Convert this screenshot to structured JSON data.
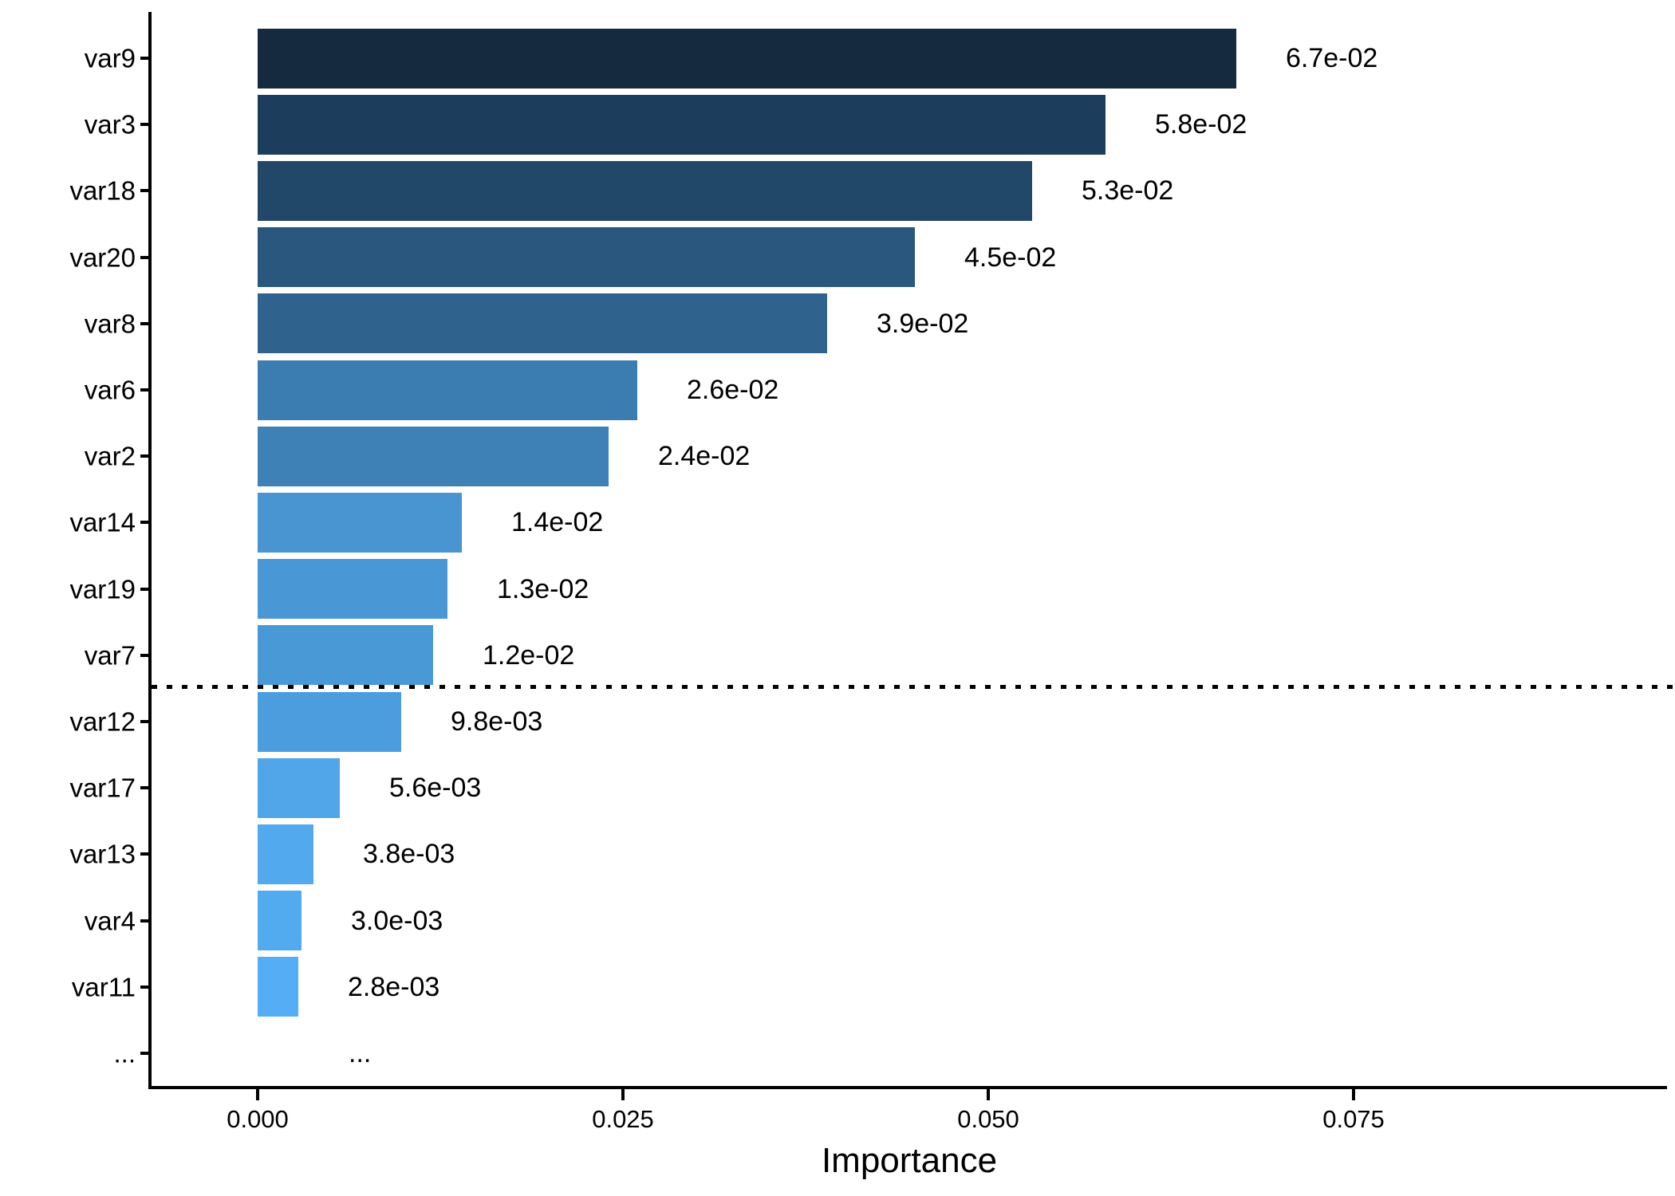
{
  "chart_data": {
    "type": "bar",
    "orientation": "horizontal",
    "title": "",
    "xlabel": "Importance",
    "ylabel": "",
    "categories": [
      "var9",
      "var3",
      "var18",
      "var20",
      "var8",
      "var6",
      "var2",
      "var14",
      "var19",
      "var7",
      "var12",
      "var17",
      "var13",
      "var4",
      "var11",
      "..."
    ],
    "values": [
      0.067,
      0.058,
      0.053,
      0.045,
      0.039,
      0.026,
      0.024,
      0.014,
      0.013,
      0.012,
      0.0098,
      0.0056,
      0.0038,
      0.003,
      0.0028,
      null
    ],
    "value_labels": [
      "6.7e-02",
      "5.8e-02",
      "5.3e-02",
      "4.5e-02",
      "3.9e-02",
      "2.6e-02",
      "2.4e-02",
      "1.4e-02",
      "1.3e-02",
      "1.2e-02",
      "9.8e-03",
      "5.6e-03",
      "3.8e-03",
      "3.0e-03",
      "2.8e-03",
      "..."
    ],
    "bar_colors": [
      "#15293F",
      "#1C3D5B",
      "#214769",
      "#29577E",
      "#2F638E",
      "#3C7DB1",
      "#3E81B7",
      "#4895D1",
      "#4997D4",
      "#4A99D7",
      "#4C9DDD",
      "#50A6E8",
      "#52A9ED",
      "#53ABEF",
      "#55AEF5",
      null
    ],
    "x_ticks": {
      "labels": [
        "0.000",
        "0.025",
        "0.050",
        "0.075"
      ],
      "values": [
        0,
        0.025,
        0.05,
        0.075
      ]
    },
    "xlim": [
      0,
      0.097
    ],
    "grid": false,
    "legend": "none",
    "threshold_line": {
      "after_category": "var7",
      "style": "dotted",
      "color": "#000000"
    }
  },
  "colors": {
    "background": "#ffffff",
    "axis": "#000000",
    "text": "#000000"
  }
}
